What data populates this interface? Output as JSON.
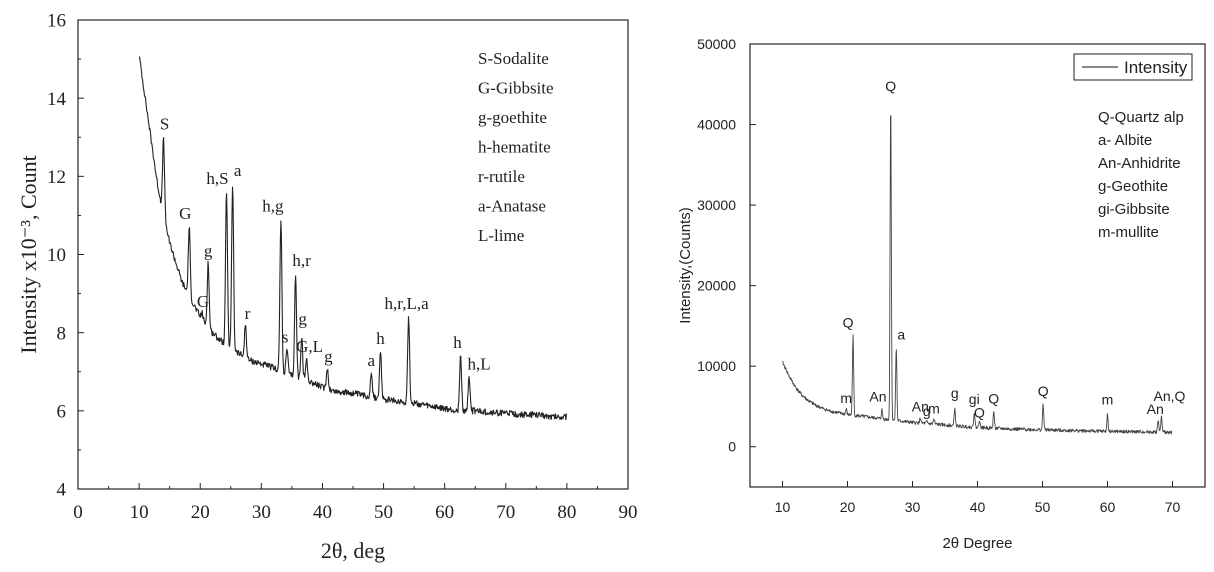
{
  "chart_data": [
    {
      "type": "line",
      "xlabel": "2θ, deg",
      "ylabel": "Intensity x10⁻³, Count",
      "xlim": [
        0,
        90
      ],
      "ylim": [
        4,
        16
      ],
      "x_ticks": [
        "0",
        "10",
        "20",
        "30",
        "40",
        "50",
        "60",
        "70",
        "80",
        "90"
      ],
      "y_ticks": [
        "4",
        "6",
        "8",
        "10",
        "12",
        "14",
        "16"
      ],
      "grid": false,
      "legend": [
        "S-Sodalite",
        "G-Gibbsite",
        "g-goethite",
        "h-hematite",
        "r-rutile",
        "a-Anatase",
        "L-lime"
      ],
      "series": [
        {
          "x": [
            10,
            11,
            12,
            13,
            14,
            15,
            16,
            17,
            18,
            19,
            20,
            22,
            24,
            26,
            28,
            30,
            32,
            35,
            38,
            40,
            42,
            45,
            48,
            50,
            52,
            55,
            58,
            60,
            62,
            65,
            68,
            70,
            72,
            75,
            78,
            80
          ],
          "y": [
            15.1,
            14.0,
            12.9,
            11.8,
            11.0,
            10.3,
            9.8,
            9.3,
            9.0,
            8.7,
            8.4,
            8.0,
            7.7,
            7.5,
            7.3,
            7.2,
            7.1,
            6.9,
            6.75,
            6.6,
            6.5,
            6.45,
            6.35,
            6.3,
            6.25,
            6.2,
            6.1,
            6.05,
            6.0,
            6.0,
            5.95,
            5.95,
            5.9,
            5.9,
            5.85,
            5.85
          ]
        }
      ],
      "peaks": [
        {
          "x": 14.0,
          "y": 13.0,
          "label": "S"
        },
        {
          "x": 18.2,
          "y": 10.7,
          "label": "G"
        },
        {
          "x": 20.3,
          "y": 8.5,
          "label": "G"
        },
        {
          "x": 21.3,
          "y": 9.8,
          "label": "g"
        },
        {
          "x": 24.3,
          "y": 11.6,
          "label": "h,S"
        },
        {
          "x": 25.3,
          "y": 11.8,
          "label": "a"
        },
        {
          "x": 27.4,
          "y": 8.2,
          "label": "r"
        },
        {
          "x": 33.2,
          "y": 10.9,
          "label": "h,g"
        },
        {
          "x": 34.2,
          "y": 7.6,
          "label": "s"
        },
        {
          "x": 35.6,
          "y": 9.5,
          "label": "h,r"
        },
        {
          "x": 36.6,
          "y": 7.9,
          "label": "g"
        },
        {
          "x": 37.4,
          "y": 7.3,
          "label": "G,L"
        },
        {
          "x": 40.8,
          "y": 7.1,
          "label": "g"
        },
        {
          "x": 48.0,
          "y": 7.0,
          "label": "a"
        },
        {
          "x": 49.5,
          "y": 7.5,
          "label": "h"
        },
        {
          "x": 54.1,
          "y": 8.4,
          "label": "h,r,L,a"
        },
        {
          "x": 62.6,
          "y": 7.4,
          "label": "h"
        },
        {
          "x": 64.0,
          "y": 6.9,
          "label": "h,L"
        }
      ]
    },
    {
      "type": "line",
      "xlabel": "2θ Degree",
      "ylabel": "Intensity,(Counts)",
      "xlim": [
        5,
        75
      ],
      "ylim": [
        -5000,
        50000
      ],
      "x_ticks": [
        "10",
        "20",
        "30",
        "40",
        "50",
        "60",
        "70"
      ],
      "y_ticks": [
        "0",
        "10000",
        "20000",
        "30000",
        "40000",
        "50000"
      ],
      "grid": false,
      "legend_box": "Intensity",
      "legend_placement": "top-right",
      "legend": [
        "Q-Quartz alp",
        "a- Albite",
        "An-Anhidrite",
        "g-Geothite",
        "gi-Gibbsite",
        "m-mullite"
      ],
      "series": [
        {
          "name": "Intensity",
          "x": [
            10,
            11,
            12,
            13,
            14,
            15,
            16,
            17,
            18,
            20,
            22,
            25,
            28,
            30,
            32,
            35,
            38,
            40,
            45,
            50,
            55,
            60,
            65,
            70
          ],
          "y": [
            10500,
            8800,
            7400,
            6400,
            5700,
            5200,
            4800,
            4500,
            4300,
            4000,
            3800,
            3500,
            3200,
            3000,
            2900,
            2700,
            2500,
            2400,
            2200,
            2100,
            2000,
            1900,
            1850,
            1800
          ]
        }
      ],
      "peaks": [
        {
          "x": 19.8,
          "y": 4700,
          "label": "m"
        },
        {
          "x": 20.85,
          "y": 13800,
          "label": "Q"
        },
        {
          "x": 25.3,
          "y": 4600,
          "label": "An"
        },
        {
          "x": 26.65,
          "y": 43200,
          "label": "Q"
        },
        {
          "x": 27.5,
          "y": 12300,
          "label": "a"
        },
        {
          "x": 31.2,
          "y": 3600,
          "label": "An"
        },
        {
          "x": 32.2,
          "y": 3100,
          "label": "g"
        },
        {
          "x": 33.3,
          "y": 3400,
          "label": "m"
        },
        {
          "x": 36.5,
          "y": 4800,
          "label": "g"
        },
        {
          "x": 39.5,
          "y": 4300,
          "label": "gi"
        },
        {
          "x": 40.3,
          "y": 3400,
          "label": "Q"
        },
        {
          "x": 42.5,
          "y": 4400,
          "label": "Q"
        },
        {
          "x": 50.1,
          "y": 5300,
          "label": "Q"
        },
        {
          "x": 60.0,
          "y": 4000,
          "label": "m"
        },
        {
          "x": 67.8,
          "y": 3300,
          "label": "An"
        },
        {
          "x": 68.3,
          "y": 3700,
          "label": "An,Q"
        }
      ]
    }
  ]
}
